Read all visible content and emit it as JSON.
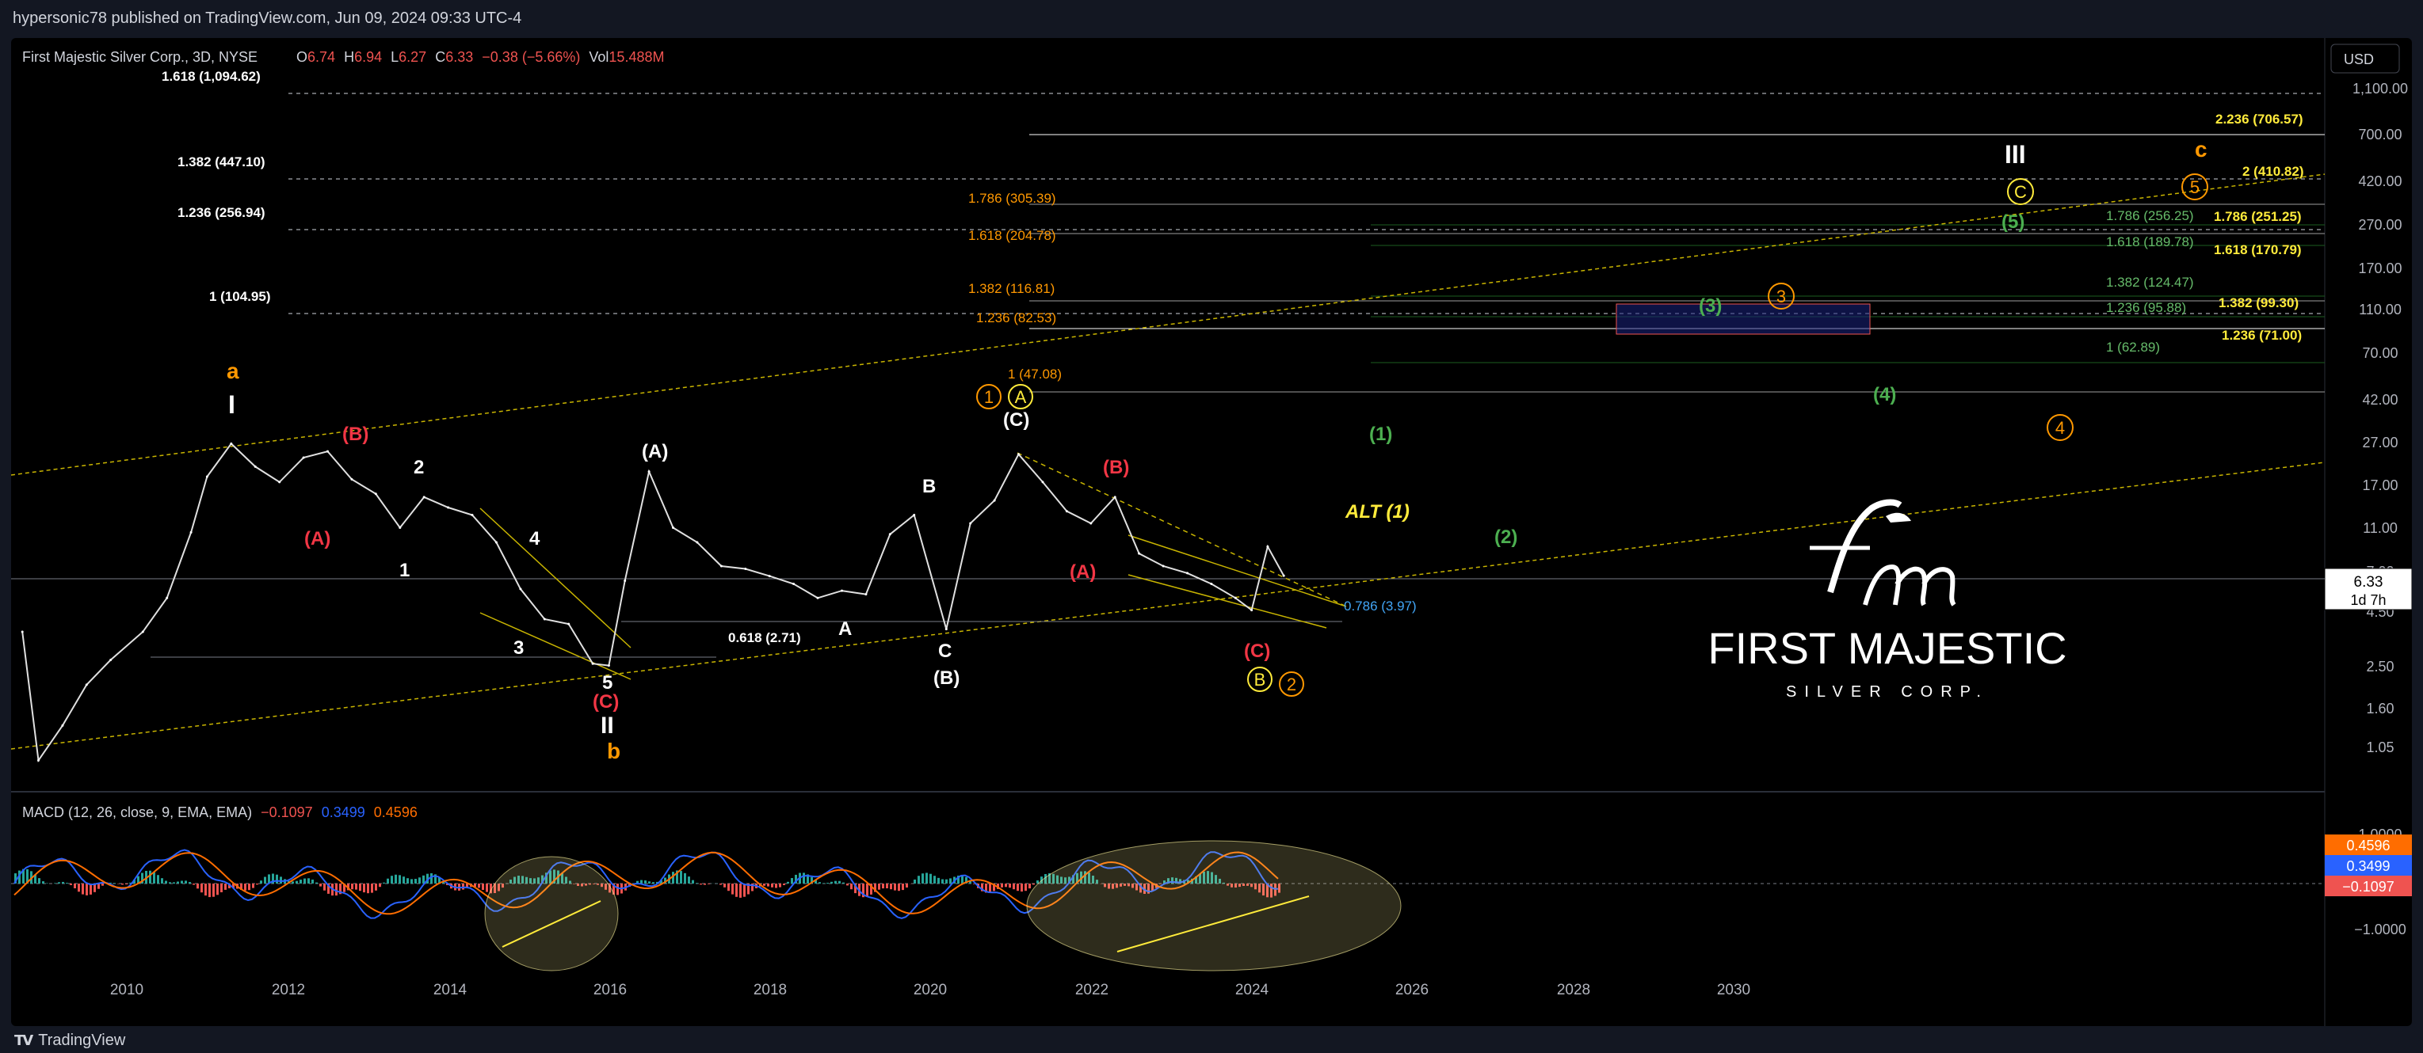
{
  "publish_line": "hypersonic78 published on TradingView.com, Jun 09, 2024 09:33 UTC-4",
  "header": {
    "symbol": "First Majestic Silver Corp., 3D, NYSE",
    "o_label": "O",
    "o_value": "6.74",
    "h_label": "H",
    "h_value": "6.94",
    "l_label": "L",
    "l_value": "6.27",
    "c_label": "C",
    "c_value": "6.33",
    "change": "−0.38 (−5.66%)",
    "vol_label": "Vol",
    "vol_value": "15.488M"
  },
  "currency_button": "USD",
  "price_badge": {
    "price": "6.33",
    "countdown": "1d 7h"
  },
  "price_axis_labels": [
    "1,100.00",
    "700.00",
    "420.00",
    "270.00",
    "170.00",
    "110.00",
    "70.00",
    "42.00",
    "27.00",
    "17.00",
    "11.00",
    "7.00",
    "4.50",
    "2.50",
    "1.60",
    "1.05"
  ],
  "macd": {
    "title": "MACD (12, 26, close, 9, EMA, EMA)",
    "v1": "−0.1097",
    "v2": "0.3499",
    "v3": "0.4596",
    "axis_labels": [
      "1.0000",
      "−1.0000"
    ],
    "badges": [
      "0.4596",
      "0.3499",
      "−0.1097"
    ]
  },
  "x_axis_labels": [
    "2010",
    "2012",
    "2014",
    "2016",
    "2018",
    "2020",
    "2022",
    "2024",
    "2026",
    "2028",
    "2030"
  ],
  "fib_levels_left": [
    "1.618 (1,094.62)",
    "1.382 (447.10)",
    "1.236 (256.94)",
    "1 (104.95)"
  ],
  "fib_levels_mid": [
    "1.786 (305.39)",
    "1.618 (204.78)",
    "1.382 (116.81)",
    "1.236 (82.53)",
    "1 (47.08)"
  ],
  "fib_levels_green": [
    "1.786 (256.25)",
    "1.618 (189.78)",
    "1.382 (124.47)",
    "1.236 (95.88)",
    "1 (62.89)"
  ],
  "fib_levels_yellow": [
    "2.236 (706.57)",
    "2 (410.82)",
    "1.786 (251.25)",
    "1.618 (170.79)",
    "1.382 (99.30)",
    "1.236 (71.00)"
  ],
  "retracements": [
    "0.618 (2.71)",
    "0.786 (3.97)"
  ],
  "wave_labels": {
    "I": "I",
    "II": "II",
    "III": "III",
    "a": "a",
    "b": "b",
    "c": "c",
    "B_paren_red": "(B)",
    "A_paren_red": "(A)",
    "C_paren_red": "(C)",
    "A_paren_white": "(A)",
    "B_paren_white": "(B)",
    "C_paren_white": "(C)",
    "n1": "1",
    "n2": "2",
    "n3": "3",
    "n4": "4",
    "n5": "5",
    "A": "A",
    "B": "B",
    "C": "C",
    "g1": "(1)",
    "g2": "(2)",
    "g3": "(3)",
    "g4": "(4)",
    "g5": "(5)",
    "alt": "ALT (1)",
    "circ1": "1",
    "circ2": "2",
    "circ3": "3",
    "circ4": "4",
    "circ5": "5",
    "circA": "A",
    "circB": "B",
    "circC": "C"
  },
  "watermark": {
    "line1": "FIRST MAJESTIC",
    "line2": "SILVER CORP."
  },
  "footer": {
    "brand": "TradingView"
  },
  "colors": {
    "up": "#26a69a",
    "down": "#ef5350",
    "macd": "#2962ff",
    "signal": "#ff6d00",
    "fib_orange": "#ff9800",
    "fib_green": "#66bb6a",
    "fib_yellow": "#ffeb3b",
    "wave_red": "#f23645"
  },
  "chart_data": {
    "type": "line",
    "title": "First Majestic Silver Corp., 3D, NYSE",
    "y_scale": "log",
    "ylim": [
      0.75,
      1300
    ],
    "xlim": [
      2008.6,
      2031.5
    ],
    "series": [
      {
        "x": [
          2008.7,
          2008.9,
          2009.2,
          2009.5,
          2009.8,
          2010.2,
          2010.5,
          2010.8,
          2011.0,
          2011.3,
          2011.6,
          2011.9,
          2012.2,
          2012.5,
          2012.8,
          2013.1,
          2013.4,
          2013.7,
          2014.0,
          2014.3,
          2014.6,
          2014.9,
          2015.2,
          2015.5,
          2015.8,
          2016.0,
          2016.2,
          2016.5,
          2016.8,
          2017.1,
          2017.4,
          2017.7,
          2018.0,
          2018.3,
          2018.6,
          2018.9,
          2019.2,
          2019.5,
          2019.8,
          2020.2,
          2020.5,
          2020.8,
          2021.1,
          2021.4,
          2021.7,
          2022.0,
          2022.3,
          2022.6,
          2022.9,
          2023.2,
          2023.5,
          2023.8,
          2024.0,
          2024.2,
          2024.4
        ],
        "y": [
          3.5,
          0.9,
          1.3,
          2.0,
          2.6,
          3.5,
          5.0,
          10.0,
          18.0,
          25.5,
          20.0,
          17.0,
          22.0,
          23.5,
          17.5,
          15.0,
          10.5,
          14.5,
          13.0,
          12.0,
          9.0,
          5.5,
          4.0,
          3.8,
          2.5,
          2.45,
          6.0,
          19.0,
          10.5,
          9.0,
          7.0,
          6.8,
          6.3,
          5.8,
          5.0,
          5.4,
          5.2,
          9.8,
          12.0,
          3.6,
          11.0,
          14.0,
          22.8,
          17.0,
          12.5,
          11.0,
          14.5,
          8.0,
          7.0,
          6.5,
          5.8,
          5.0,
          4.4,
          8.6,
          6.33
        ]
      }
    ],
    "ylabel": "",
    "xlabel": "",
    "grid": false
  }
}
